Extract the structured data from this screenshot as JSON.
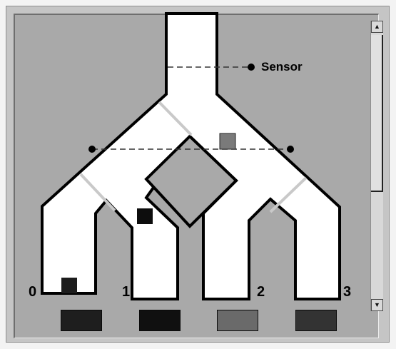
{
  "sensor": {
    "label": "Sensor"
  },
  "outputs": [
    {
      "label": "0",
      "indicator_color": "#1e1e1e"
    },
    {
      "label": "1",
      "indicator_color": "#101010"
    },
    {
      "label": "2",
      "indicator_color": "#6a6a6a"
    },
    {
      "label": "3",
      "indicator_color": "#333333"
    }
  ],
  "blocks": [
    {
      "name": "gray-block",
      "color": "#7a7a7a"
    },
    {
      "name": "black-block",
      "color": "#0d0d0d"
    },
    {
      "name": "dark-block",
      "color": "#1c1c1c"
    }
  ],
  "scrollbar": {
    "up_arrow": "▲",
    "down_arrow": "▼"
  }
}
